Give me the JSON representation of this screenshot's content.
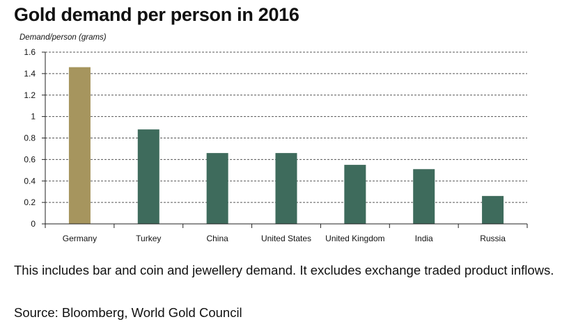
{
  "title": "Gold demand per person in 2016",
  "footnote": "This includes bar and coin and jewellery demand. It excludes exchange traded product inflows.",
  "source": "Source: Bloomberg, World Gold Council",
  "colors": {
    "highlight": "#a6955e",
    "bar": "#3e6b5c",
    "grid": "#555555",
    "axis": "#222222"
  },
  "chart_data": {
    "type": "bar",
    "title": "Gold demand per person in 2016",
    "ylabel": "Demand/person (grams)",
    "xlabel": "",
    "categories": [
      "Germany",
      "Turkey",
      "China",
      "United States",
      "United Kingdom",
      "India",
      "Russia"
    ],
    "values": [
      1.46,
      0.88,
      0.66,
      0.66,
      0.55,
      0.51,
      0.26
    ],
    "highlight_index": 0,
    "ylim": [
      0,
      1.6
    ],
    "yticks": [
      0,
      0.2,
      0.4,
      0.6,
      0.8,
      1,
      1.2,
      1.4,
      1.6
    ],
    "ytick_labels": [
      "0",
      "0.2",
      "0.4",
      "0.6",
      "0.8",
      "1",
      "1.2",
      "1.4",
      "1.6"
    ],
    "grid": "horizontal dashed",
    "legend": "none"
  }
}
